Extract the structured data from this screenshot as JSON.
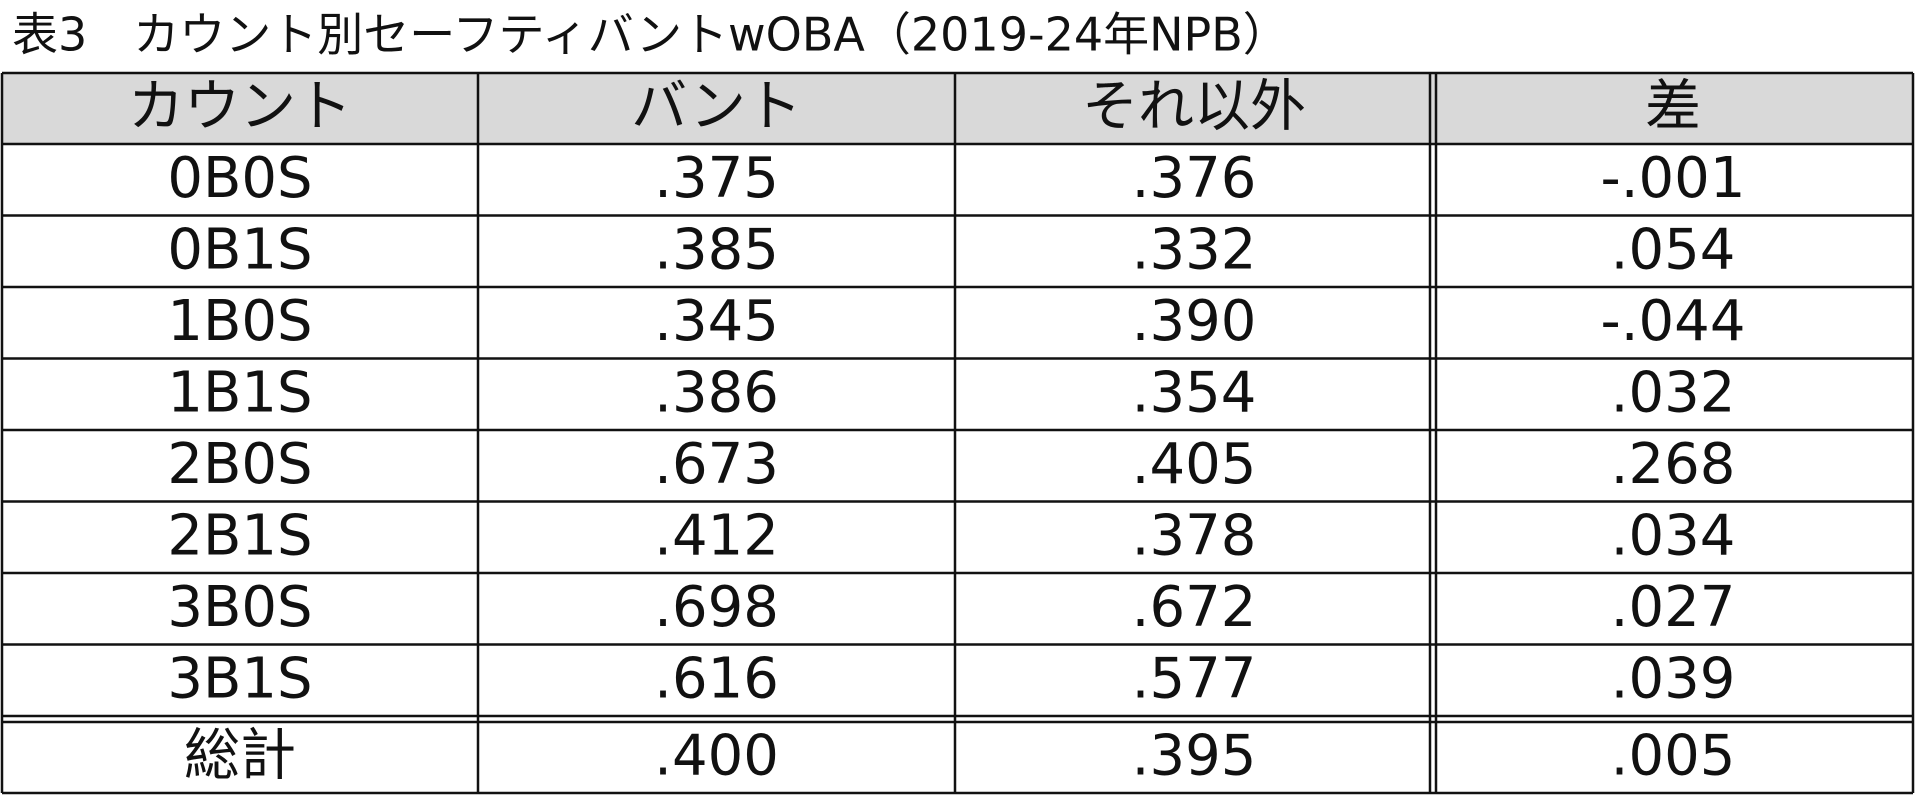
{
  "title": "表3　カウント別セーフティバントwOBA（2019-24年NPB）",
  "table": {
    "header": [
      "カウント",
      "バント",
      "それ以外",
      "差"
    ],
    "rows": [
      [
        "0B0S",
        ".375",
        ".376",
        "-.001"
      ],
      [
        "0B1S",
        ".385",
        ".332",
        ".054"
      ],
      [
        "1B0S",
        ".345",
        ".390",
        "-.044"
      ],
      [
        "1B1S",
        ".386",
        ".354",
        ".032"
      ],
      [
        "2B0S",
        ".673",
        ".405",
        ".268"
      ],
      [
        "2B1S",
        ".412",
        ".378",
        ".034"
      ],
      [
        "3B0S",
        ".698",
        ".672",
        ".027"
      ],
      [
        "3B1S",
        ".616",
        ".577",
        ".039"
      ]
    ],
    "total": [
      "総計",
      ".400",
      ".395",
      ".005"
    ]
  }
}
